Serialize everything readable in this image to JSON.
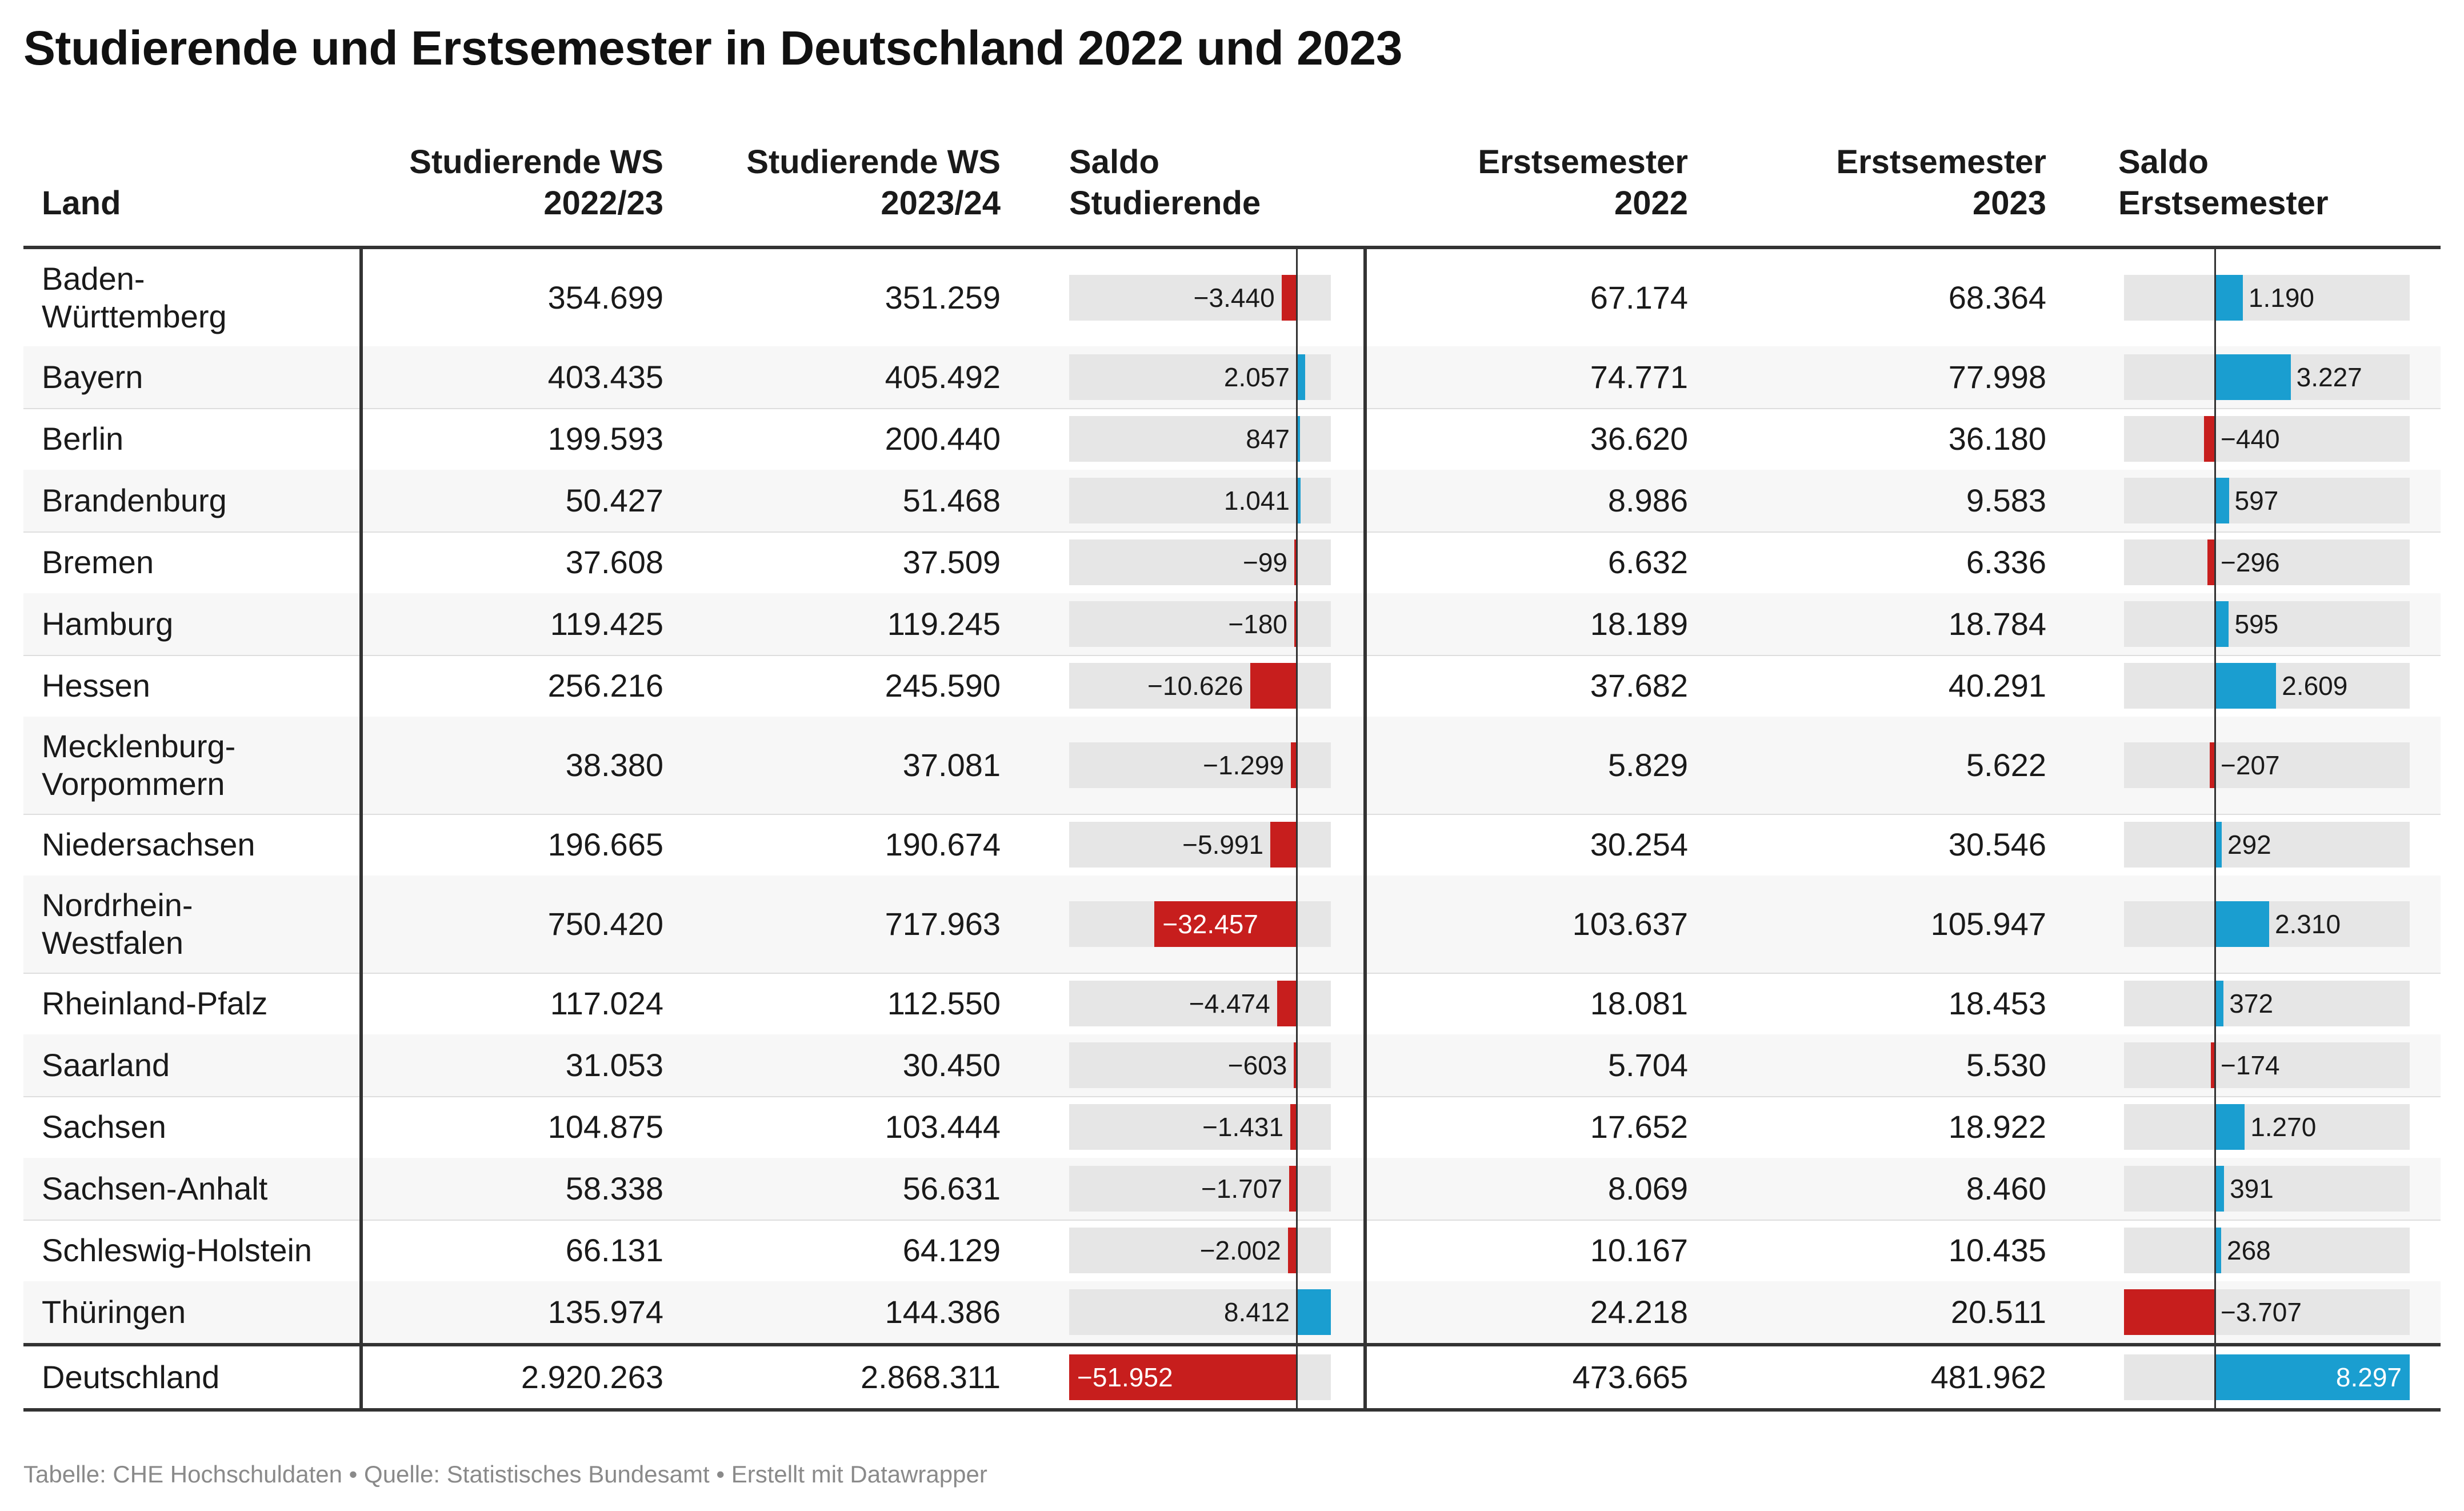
{
  "title": "Studierende und Erstsemester in Deutschland 2022 und 2023",
  "footer": "Tabelle: CHE Hochschuldaten • Quelle: Statistisches Bundesamt • Erstellt mit Datawrapper",
  "headers": {
    "land": "Land",
    "stud2022": [
      "Studierende WS",
      "2022/23"
    ],
    "stud2023": [
      "Studierende WS",
      "2023/24"
    ],
    "saldoStud": [
      "Saldo",
      "Studierende"
    ],
    "erst2022": [
      "Erstsemester",
      "2022"
    ],
    "erst2023": [
      "Erstsemester",
      "2023"
    ],
    "saldoErst": [
      "Saldo",
      "Erstsemester"
    ]
  },
  "colors": {
    "negative": "#c71e1d",
    "positive": "#1a9ed0",
    "barBackground": "#e6e6e6"
  },
  "chart_data": {
    "type": "table",
    "rows": [
      {
        "land": "Baden-Württemberg",
        "lines": [
          "Baden-",
          "Württemberg"
        ],
        "stud2022": "354.699",
        "stud2023": "351.259",
        "saldoStud": -3440,
        "saldoStudLabel": "−3.440",
        "erst2022": "67.174",
        "erst2023": "68.364",
        "saldoErst": 1190,
        "saldoErstLabel": "1.190"
      },
      {
        "land": "Bayern",
        "lines": [
          "Bayern"
        ],
        "stud2022": "403.435",
        "stud2023": "405.492",
        "saldoStud": 2057,
        "saldoStudLabel": "2.057",
        "erst2022": "74.771",
        "erst2023": "77.998",
        "saldoErst": 3227,
        "saldoErstLabel": "3.227"
      },
      {
        "land": "Berlin",
        "lines": [
          "Berlin"
        ],
        "stud2022": "199.593",
        "stud2023": "200.440",
        "saldoStud": 847,
        "saldoStudLabel": "847",
        "erst2022": "36.620",
        "erst2023": "36.180",
        "saldoErst": -440,
        "saldoErstLabel": "−440"
      },
      {
        "land": "Brandenburg",
        "lines": [
          "Brandenburg"
        ],
        "stud2022": "50.427",
        "stud2023": "51.468",
        "saldoStud": 1041,
        "saldoStudLabel": "1.041",
        "erst2022": "8.986",
        "erst2023": "9.583",
        "saldoErst": 597,
        "saldoErstLabel": "597"
      },
      {
        "land": "Bremen",
        "lines": [
          "Bremen"
        ],
        "stud2022": "37.608",
        "stud2023": "37.509",
        "saldoStud": -99,
        "saldoStudLabel": "−99",
        "erst2022": "6.632",
        "erst2023": "6.336",
        "saldoErst": -296,
        "saldoErstLabel": "−296"
      },
      {
        "land": "Hamburg",
        "lines": [
          "Hamburg"
        ],
        "stud2022": "119.425",
        "stud2023": "119.245",
        "saldoStud": -180,
        "saldoStudLabel": "−180",
        "erst2022": "18.189",
        "erst2023": "18.784",
        "saldoErst": 595,
        "saldoErstLabel": "595"
      },
      {
        "land": "Hessen",
        "lines": [
          "Hessen"
        ],
        "stud2022": "256.216",
        "stud2023": "245.590",
        "saldoStud": -10626,
        "saldoStudLabel": "−10.626",
        "erst2022": "37.682",
        "erst2023": "40.291",
        "saldoErst": 2609,
        "saldoErstLabel": "2.609"
      },
      {
        "land": "Mecklenburg-Vorpommern",
        "lines": [
          "Mecklenburg-",
          "Vorpommern"
        ],
        "stud2022": "38.380",
        "stud2023": "37.081",
        "saldoStud": -1299,
        "saldoStudLabel": "−1.299",
        "erst2022": "5.829",
        "erst2023": "5.622",
        "saldoErst": -207,
        "saldoErstLabel": "−207"
      },
      {
        "land": "Niedersachsen",
        "lines": [
          "Niedersachsen"
        ],
        "stud2022": "196.665",
        "stud2023": "190.674",
        "saldoStud": -5991,
        "saldoStudLabel": "−5.991",
        "erst2022": "30.254",
        "erst2023": "30.546",
        "saldoErst": 292,
        "saldoErstLabel": "292"
      },
      {
        "land": "Nordrhein-Westfalen",
        "lines": [
          "Nordrhein-",
          "Westfalen"
        ],
        "stud2022": "750.420",
        "stud2023": "717.963",
        "saldoStud": -32457,
        "saldoStudLabel": "−32.457",
        "erst2022": "103.637",
        "erst2023": "105.947",
        "saldoErst": 2310,
        "saldoErstLabel": "2.310"
      },
      {
        "land": "Rheinland-Pfalz",
        "lines": [
          "Rheinland-Pfalz"
        ],
        "stud2022": "117.024",
        "stud2023": "112.550",
        "saldoStud": -4474,
        "saldoStudLabel": "−4.474",
        "erst2022": "18.081",
        "erst2023": "18.453",
        "saldoErst": 372,
        "saldoErstLabel": "372"
      },
      {
        "land": "Saarland",
        "lines": [
          "Saarland"
        ],
        "stud2022": "31.053",
        "stud2023": "30.450",
        "saldoStud": -603,
        "saldoStudLabel": "−603",
        "erst2022": "5.704",
        "erst2023": "5.530",
        "saldoErst": -174,
        "saldoErstLabel": "−174"
      },
      {
        "land": "Sachsen",
        "lines": [
          "Sachsen"
        ],
        "stud2022": "104.875",
        "stud2023": "103.444",
        "saldoStud": -1431,
        "saldoStudLabel": "−1.431",
        "erst2022": "17.652",
        "erst2023": "18.922",
        "saldoErst": 1270,
        "saldoErstLabel": "1.270"
      },
      {
        "land": "Sachsen-Anhalt",
        "lines": [
          "Sachsen-Anhalt"
        ],
        "stud2022": "58.338",
        "stud2023": "56.631",
        "saldoStud": -1707,
        "saldoStudLabel": "−1.707",
        "erst2022": "8.069",
        "erst2023": "8.460",
        "saldoErst": 391,
        "saldoErstLabel": "391"
      },
      {
        "land": "Schleswig-Holstein",
        "lines": [
          "Schleswig-Holstein"
        ],
        "stud2022": "66.131",
        "stud2023": "64.129",
        "saldoStud": -2002,
        "saldoStudLabel": "−2.002",
        "erst2022": "10.167",
        "erst2023": "10.435",
        "saldoErst": 268,
        "saldoErstLabel": "268"
      },
      {
        "land": "Thüringen",
        "lines": [
          "Thüringen"
        ],
        "stud2022": "135.974",
        "stud2023": "144.386",
        "saldoStud": 8412,
        "saldoStudLabel": "8.412",
        "erst2022": "24.218",
        "erst2023": "20.511",
        "saldoErst": -3707,
        "saldoErstLabel": "−3.707"
      }
    ],
    "total": {
      "land": "Deutschland",
      "lines": [
        "Deutschland"
      ],
      "stud2022": "2.920.263",
      "stud2023": "2.868.311",
      "saldoStud": -51952,
      "saldoStudLabel": "−51.952",
      "erst2022": "473.665",
      "erst2023": "481.962",
      "saldoErst": 8297,
      "saldoErstLabel": "8.297"
    },
    "saldoStudRange": [
      -51952,
      8412
    ],
    "saldoErstRange": [
      -3707,
      8297
    ]
  }
}
